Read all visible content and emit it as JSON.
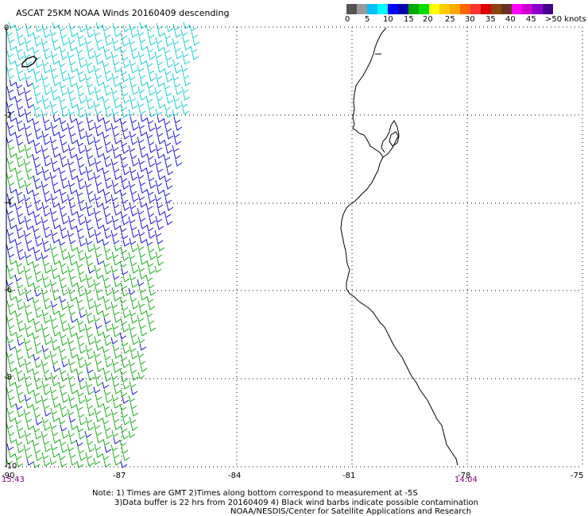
{
  "title": "ASCAT 25KM NOAA Winds 20160409 descending",
  "scale": {
    "labels": [
      "0",
      "5",
      "10",
      "15",
      "20",
      "25",
      "30",
      "35",
      "40",
      "45",
      ">50 knots"
    ],
    "colors": [
      "#555555",
      "#9a9a9a",
      "#00bfff",
      "#00ffff",
      "#0000ff",
      "#0000aa",
      "#00aa00",
      "#00dd00",
      "#ffff00",
      "#ffcc00",
      "#ffaa00",
      "#ff6600",
      "#ff3333",
      "#dd0000",
      "#884411",
      "#663322",
      "#ff00ff",
      "#cc00cc",
      "#8800cc",
      "#440088"
    ]
  },
  "map": {
    "x_ticks": [
      "-90",
      "-87",
      "-84",
      "-81",
      "-78",
      "-75"
    ],
    "y_ticks": [
      "0",
      "-2",
      "-4",
      "-6",
      "-8",
      "-10"
    ],
    "lon_range": [
      -90,
      -75
    ],
    "lat_range": [
      -10,
      0
    ],
    "gridlines": true
  },
  "times": {
    "left": "15:43",
    "right": "14:04"
  },
  "notes": [
    "Note: 1) Times are GMT 2)Times along bottom correspond to measurement at -5S",
    "3)Data buffer is 22 hrs from 20160409 4) Black wind barbs indicate possible contamination",
    "NOAA/NESDIS/Center for Satellite Applications and Research"
  ],
  "barb_colors": {
    "c10": "#00cccc",
    "c15": "#0000dd",
    "c20": "#00aa00"
  }
}
